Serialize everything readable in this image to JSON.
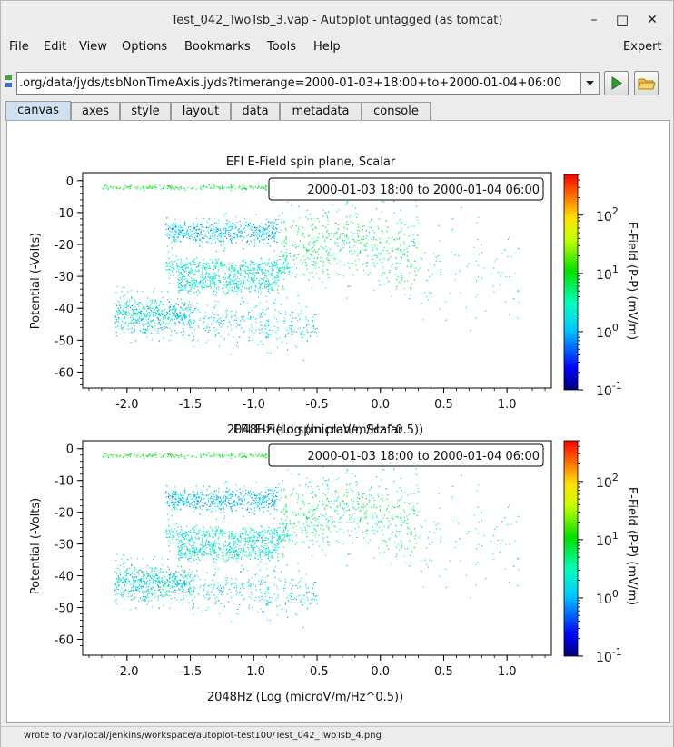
{
  "window": {
    "title": "Test_042_TwoTsb_3.vap - Autoplot untagged (as tomcat)",
    "minimize": "–",
    "maximize": "□",
    "close": "✕"
  },
  "menu": {
    "file": "File",
    "edit": "Edit",
    "view": "View",
    "options": "Options",
    "bookmarks": "Bookmarks",
    "tools": "Tools",
    "help": "Help",
    "expert": "Expert"
  },
  "url": {
    "value": ".org/data/jyds/tsbNonTimeAxis.jyds?timerange=2000-01-03+18:00+to+2000-01-04+06:00"
  },
  "tabs": [
    "canvas",
    "axes",
    "style",
    "layout",
    "data",
    "metadata",
    "console"
  ],
  "colors": {
    "accent_tab": "#cfe1f0",
    "play_green": "#2f9a2f",
    "folder_yellow": "#f0c040"
  },
  "icons": {
    "dropdown": "chevron-down-icon",
    "go": "play-icon",
    "open": "folder-icon",
    "data_source": "data-source-icon"
  },
  "plots": [
    {
      "title": "EFI  E-Field spin plane, Scalar",
      "time_label": "2000-01-03 18:00 to 2000-01-04 06:00",
      "xlabel": "2048Hz (Log (microV/m/Hz^0.5))",
      "ylabel": "Potential (-Volts)",
      "zlabel": "E-Field (P-P) (mV/m)",
      "xticks": [
        "-2.0",
        "-1.5",
        "-1.0",
        "-0.5",
        "0.0",
        "0.5",
        "1.0"
      ],
      "yticks": [
        "0",
        "-10",
        "-20",
        "-30",
        "-40",
        "-50",
        "-60"
      ],
      "zticks": [
        {
          "base": "10",
          "exp": "2"
        },
        {
          "base": "10",
          "exp": "1"
        },
        {
          "base": "10",
          "exp": "0"
        },
        {
          "base": "10",
          "exp": "-1"
        }
      ]
    },
    {
      "title": "EFI  E-Field spin plane, Scalar",
      "time_label": "2000-01-03 18:00 to 2000-01-04 06:00",
      "xlabel": "2048Hz (Log (microV/m/Hz^0.5))",
      "ylabel": "Potential (-Volts)",
      "zlabel": "E-Field (P-P) (mV/m)",
      "xticks": [
        "-2.0",
        "-1.5",
        "-1.0",
        "-0.5",
        "0.0",
        "0.5",
        "1.0"
      ],
      "yticks": [
        "0",
        "-10",
        "-20",
        "-30",
        "-40",
        "-50",
        "-60"
      ],
      "zticks": [
        {
          "base": "10",
          "exp": "2"
        },
        {
          "base": "10",
          "exp": "1"
        },
        {
          "base": "10",
          "exp": "0"
        },
        {
          "base": "10",
          "exp": "-1"
        }
      ]
    }
  ],
  "chart_data": [
    {
      "type": "scatter",
      "title": "EFI  E-Field spin plane, Scalar",
      "xlabel": "2048Hz (Log (microV/m/Hz^0.5))",
      "ylabel": "Potential (-Volts)",
      "zlabel": "E-Field (P-P) (mV/m)",
      "xlim": [
        -2.35,
        1.35
      ],
      "ylim": [
        -65,
        2.5
      ],
      "zlim": [
        0.1,
        500
      ],
      "zscale": "log",
      "colorbar": "rainbow",
      "grid": false,
      "clusters": [
        {
          "x_range": [
            -2.2,
            -0.3
          ],
          "y_center": -2,
          "y_spread": 0.6,
          "z_range": [
            4,
            20
          ],
          "n": 260
        },
        {
          "x_range": [
            -0.8,
            0.6
          ],
          "y_center": -3,
          "y_spread": 0.8,
          "z_range": [
            0.5,
            3
          ],
          "n": 120
        },
        {
          "x_range": [
            -1.7,
            -0.8
          ],
          "y_center": -16,
          "y_spread": 3.5,
          "z_range": [
            0.5,
            3
          ],
          "n": 520
        },
        {
          "x_range": [
            -1.7,
            -0.7
          ],
          "y_center": -27,
          "y_spread": 2.5,
          "z_range": [
            1,
            6
          ],
          "n": 380
        },
        {
          "x_range": [
            -1.6,
            -0.8
          ],
          "y_center": -32,
          "y_spread": 3,
          "z_range": [
            0.8,
            6
          ],
          "n": 420
        },
        {
          "x_range": [
            -2.1,
            -1.5
          ],
          "y_center": -42,
          "y_spread": 5,
          "z_range": [
            0.5,
            8
          ],
          "n": 520
        },
        {
          "x_range": [
            -1.5,
            -0.5
          ],
          "y_center": -45,
          "y_spread": 6,
          "z_range": [
            0.6,
            4
          ],
          "n": 300
        },
        {
          "x_range": [
            -0.8,
            0.3
          ],
          "y_center": -20,
          "y_spread": 10,
          "z_range": [
            2,
            12
          ],
          "n": 520
        },
        {
          "x_range": [
            0.0,
            1.1
          ],
          "y_center": -30,
          "y_spread": 12,
          "z_range": [
            2,
            10
          ],
          "n": 120
        }
      ]
    },
    {
      "type": "scatter",
      "title": "EFI  E-Field spin plane, Scalar",
      "xlabel": "2048Hz (Log (microV/m/Hz^0.5))",
      "ylabel": "Potential (-Volts)",
      "zlabel": "E-Field (P-P) (mV/m)",
      "xlim": [
        -2.35,
        1.35
      ],
      "ylim": [
        -65,
        2.5
      ],
      "zlim": [
        0.1,
        500
      ],
      "zscale": "log",
      "colorbar": "rainbow",
      "grid": false,
      "clusters": [
        {
          "x_range": [
            -2.2,
            -0.3
          ],
          "y_center": -2,
          "y_spread": 0.6,
          "z_range": [
            4,
            20
          ],
          "n": 260
        },
        {
          "x_range": [
            -0.8,
            0.6
          ],
          "y_center": -3,
          "y_spread": 0.8,
          "z_range": [
            0.5,
            3
          ],
          "n": 120
        },
        {
          "x_range": [
            -1.7,
            -0.8
          ],
          "y_center": -16,
          "y_spread": 3.5,
          "z_range": [
            0.5,
            3
          ],
          "n": 520
        },
        {
          "x_range": [
            -1.7,
            -0.7
          ],
          "y_center": -27,
          "y_spread": 2.5,
          "z_range": [
            1,
            6
          ],
          "n": 380
        },
        {
          "x_range": [
            -1.6,
            -0.8
          ],
          "y_center": -32,
          "y_spread": 3,
          "z_range": [
            0.8,
            6
          ],
          "n": 420
        },
        {
          "x_range": [
            -2.1,
            -1.5
          ],
          "y_center": -42,
          "y_spread": 5,
          "z_range": [
            0.5,
            8
          ],
          "n": 520
        },
        {
          "x_range": [
            -1.5,
            -0.5
          ],
          "y_center": -45,
          "y_spread": 6,
          "z_range": [
            0.6,
            4
          ],
          "n": 300
        },
        {
          "x_range": [
            -0.8,
            0.3
          ],
          "y_center": -20,
          "y_spread": 10,
          "z_range": [
            2,
            12
          ],
          "n": 520
        },
        {
          "x_range": [
            0.0,
            1.1
          ],
          "y_center": -30,
          "y_spread": 12,
          "z_range": [
            2,
            10
          ],
          "n": 120
        }
      ]
    }
  ],
  "status": {
    "text": "wrote to /var/local/jenkins/workspace/autoplot-test100/Test_042_TwoTsb_4.png"
  }
}
